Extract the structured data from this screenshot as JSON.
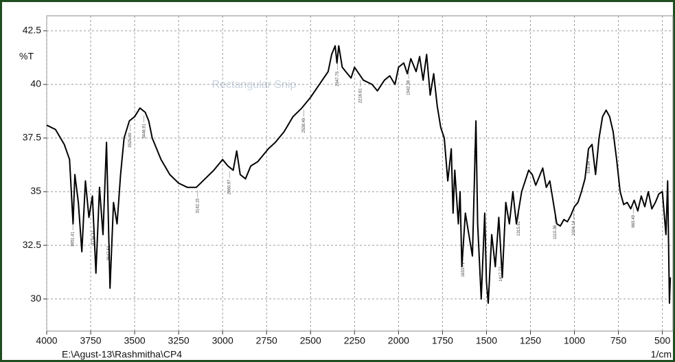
{
  "chart_data": {
    "type": "line",
    "y_label": "%T",
    "x_unit": "1/cm",
    "file_path": "E:\\Agust-13\\Rashmitha\\CP4",
    "watermark": "Rectangular Snip",
    "color": "#000000",
    "grid": true,
    "xlim": [
      4000,
      440
    ],
    "ylim": [
      28.5,
      43.2
    ],
    "xticks": [
      4000,
      3750,
      3500,
      3250,
      3000,
      2750,
      2500,
      2250,
      2000,
      1750,
      1500,
      1250,
      1000,
      750,
      500
    ],
    "yticks": [
      30,
      32.5,
      35,
      37.5,
      40,
      42.5
    ],
    "peaks": [
      3851.41,
      3734.31,
      3647.51,
      3446.91,
      3525.89,
      3142.15,
      2960.97,
      2538.49,
      2347.75,
      2216.61,
      1942.38,
      1633.71,
      1558.54,
      1417.72,
      1315.92,
      1110.36,
      1004.14,
      918.84,
      665.49
    ],
    "x": [
      4000,
      3950,
      3900,
      3870,
      3850,
      3840,
      3820,
      3800,
      3780,
      3760,
      3740,
      3720,
      3700,
      3680,
      3660,
      3640,
      3620,
      3600,
      3580,
      3560,
      3530,
      3500,
      3470,
      3440,
      3420,
      3400,
      3350,
      3300,
      3250,
      3200,
      3150,
      3100,
      3050,
      3000,
      2970,
      2940,
      2920,
      2900,
      2870,
      2840,
      2800,
      2770,
      2740,
      2700,
      2650,
      2600,
      2550,
      2500,
      2450,
      2400,
      2380,
      2360,
      2350,
      2340,
      2320,
      2300,
      2270,
      2250,
      2200,
      2150,
      2120,
      2080,
      2050,
      2020,
      2000,
      1970,
      1950,
      1930,
      1900,
      1880,
      1860,
      1840,
      1820,
      1800,
      1780,
      1760,
      1740,
      1720,
      1700,
      1690,
      1680,
      1660,
      1650,
      1640,
      1620,
      1600,
      1580,
      1560,
      1550,
      1530,
      1510,
      1500,
      1490,
      1470,
      1450,
      1430,
      1410,
      1390,
      1370,
      1350,
      1330,
      1300,
      1280,
      1260,
      1240,
      1220,
      1200,
      1180,
      1160,
      1140,
      1120,
      1100,
      1080,
      1060,
      1040,
      1020,
      1000,
      980,
      960,
      940,
      920,
      900,
      880,
      860,
      840,
      820,
      800,
      780,
      760,
      740,
      720,
      700,
      680,
      660,
      640,
      620,
      600,
      580,
      560,
      540,
      520,
      500,
      480,
      470,
      460,
      455
    ],
    "values": [
      38.1,
      37.9,
      37.2,
      36.5,
      33.5,
      35.8,
      34.5,
      32.2,
      35.5,
      33.8,
      34.8,
      31.2,
      35.2,
      33.0,
      37.3,
      30.5,
      34.5,
      33.5,
      35.8,
      37.5,
      38.3,
      38.5,
      38.9,
      38.7,
      38.3,
      37.5,
      36.5,
      35.8,
      35.4,
      35.2,
      35.2,
      35.6,
      36.0,
      36.5,
      36.2,
      36.0,
      36.9,
      35.8,
      35.6,
      36.2,
      36.4,
      36.7,
      37.0,
      37.3,
      37.8,
      38.5,
      38.9,
      39.4,
      40.0,
      40.6,
      41.4,
      41.8,
      41.0,
      41.8,
      40.8,
      40.6,
      40.3,
      40.8,
      40.2,
      40.0,
      39.7,
      40.2,
      40.4,
      40.0,
      40.8,
      41.0,
      40.5,
      41.2,
      40.6,
      41.3,
      40.2,
      41.4,
      39.5,
      40.5,
      39.0,
      38.0,
      37.5,
      35.5,
      37.0,
      34.0,
      36.0,
      33.5,
      35.0,
      31.5,
      34.0,
      33.0,
      32.0,
      38.3,
      33.5,
      30.0,
      34.0,
      30.8,
      29.8,
      33.0,
      31.5,
      33.8,
      31.0,
      34.5,
      33.5,
      35.0,
      33.5,
      35.0,
      35.5,
      36.0,
      35.8,
      35.3,
      35.7,
      36.1,
      35.2,
      35.5,
      34.5,
      33.5,
      33.4,
      33.7,
      33.6,
      33.9,
      34.3,
      34.5,
      35.0,
      35.6,
      37.0,
      37.2,
      35.8,
      37.5,
      38.5,
      38.8,
      38.5,
      37.8,
      36.5,
      35.0,
      34.4,
      34.5,
      34.2,
      34.6,
      34.1,
      34.8,
      34.3,
      35.0,
      34.2,
      34.5,
      34.9,
      35.0,
      33.0,
      35.5,
      29.8,
      31.0
    ]
  }
}
